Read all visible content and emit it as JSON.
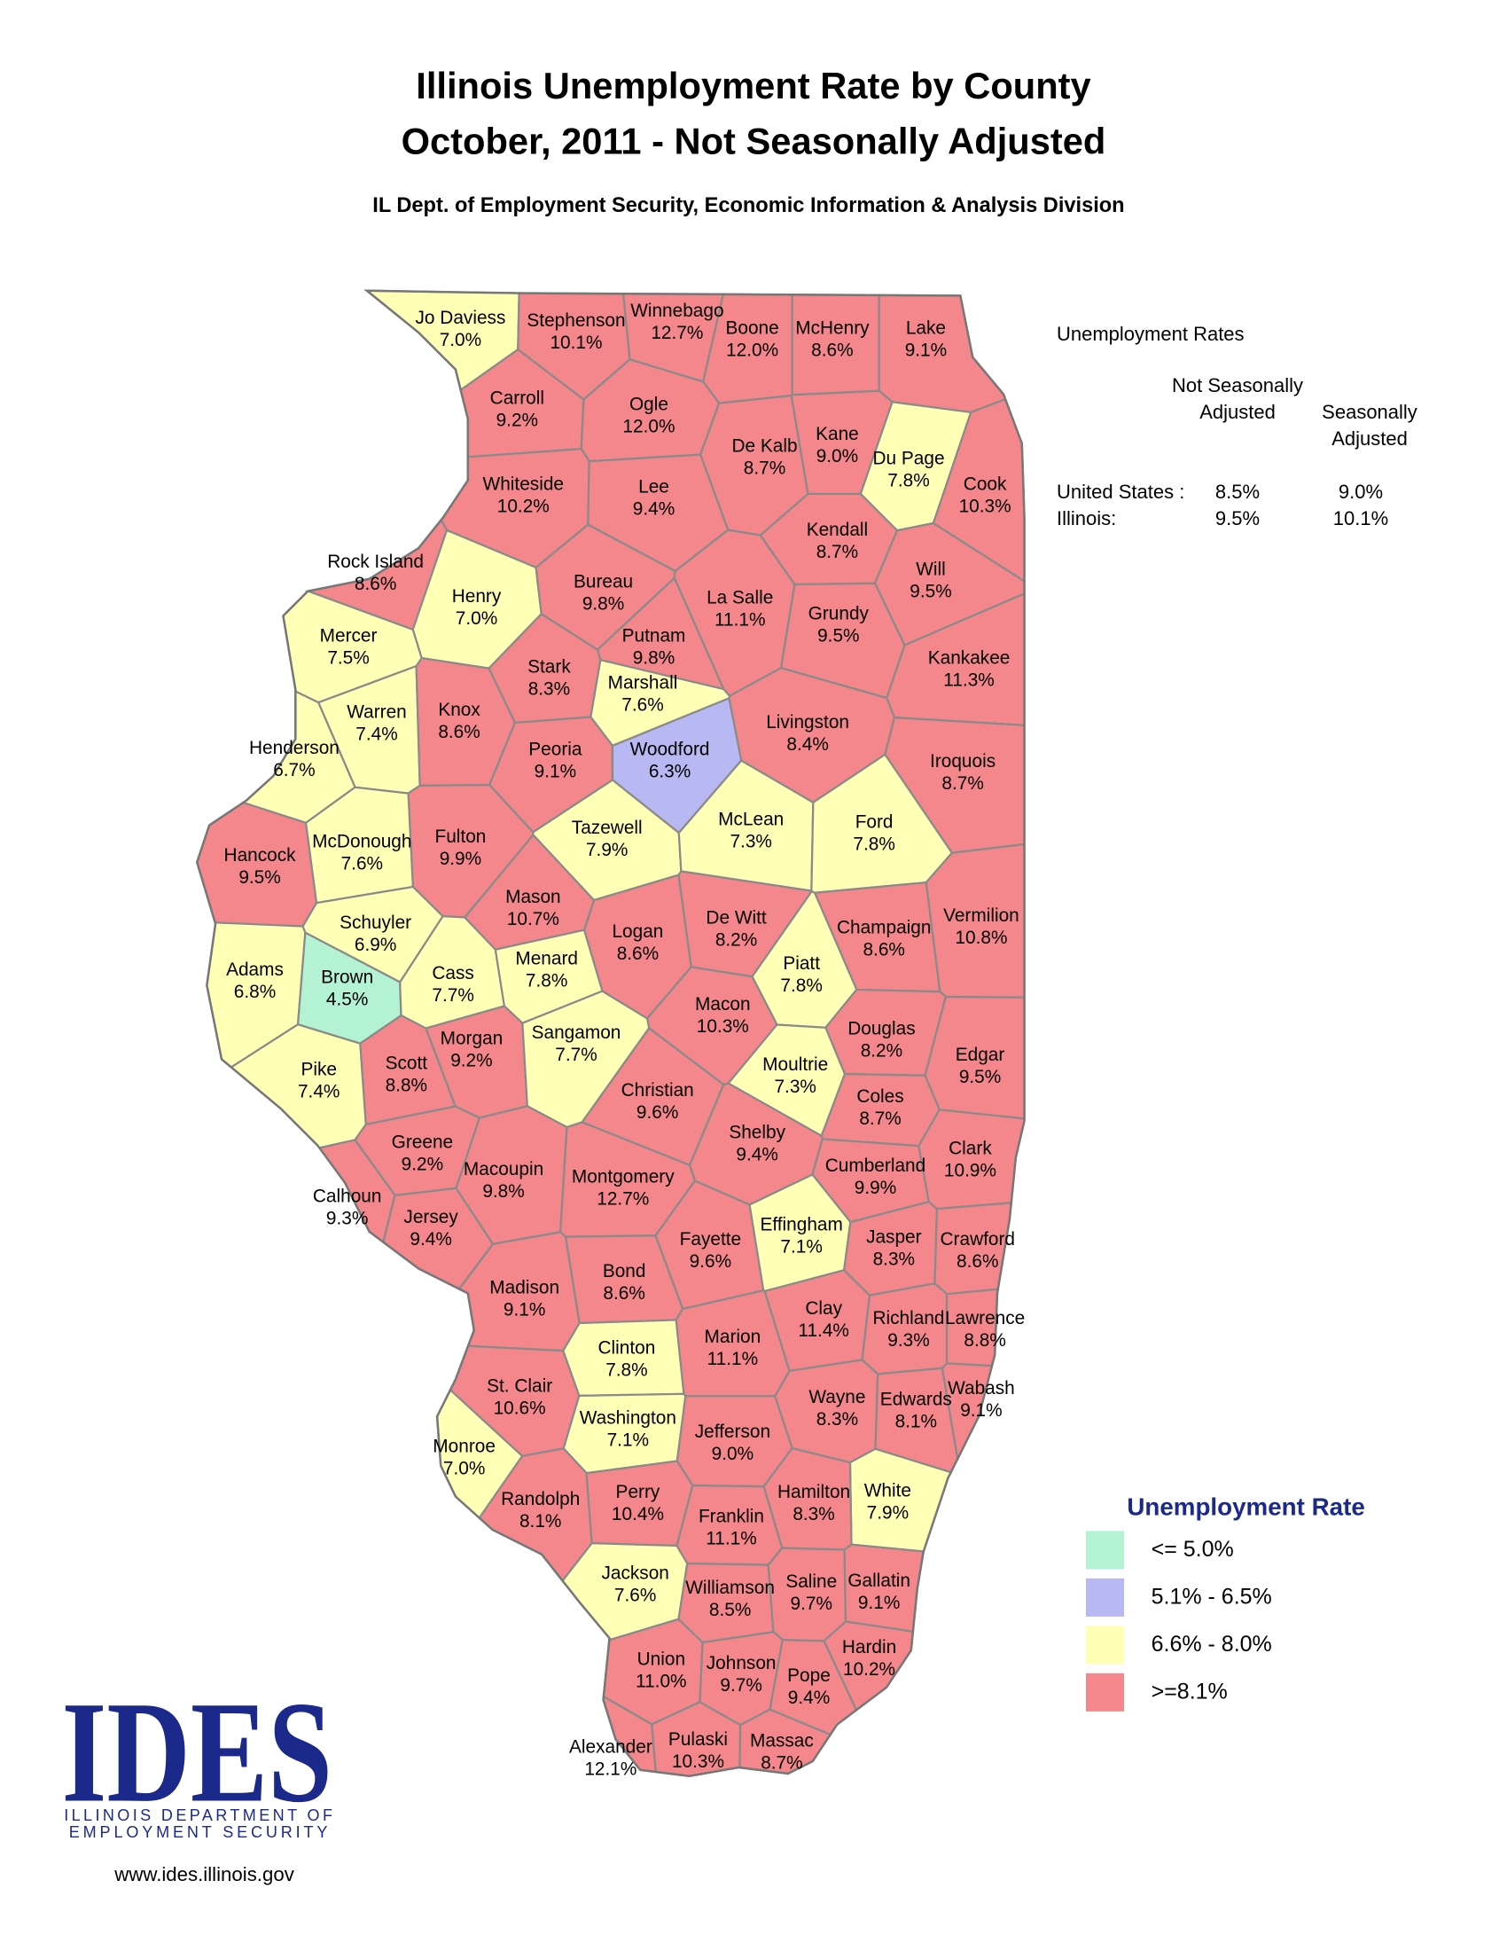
{
  "header": {
    "title": "Illinois Unemployment Rate by County",
    "subtitle": "October, 2011 - Not Seasonally Adjusted",
    "source": "IL Dept. of Employment Security, Economic Information & Analysis Division"
  },
  "rates_table": {
    "title": "Unemployment Rates",
    "columns": [
      "Not Seasonally Adjusted",
      "Seasonally Adjusted"
    ],
    "rows": [
      {
        "label": "United States :",
        "values": [
          "8.5%",
          "9.0%"
        ]
      },
      {
        "label": "Illinois:",
        "values": [
          "9.5%",
          "10.1%"
        ]
      }
    ]
  },
  "legend": {
    "title": "Unemployment Rate",
    "items": [
      {
        "label": "<= 5.0%",
        "color": "#b4f2d4"
      },
      {
        "label": "5.1% - 6.5%",
        "color": "#b8b8f2"
      },
      {
        "label": "6.6% - 8.0%",
        "color": "#ffffb6"
      },
      {
        "label": ">=8.1%",
        "color": "#f4878b"
      }
    ]
  },
  "counties": [
    {
      "name": "Jo Daviess",
      "rate": "7.0%",
      "color": "#ffffb6"
    },
    {
      "name": "Stephenson",
      "rate": "10.1%",
      "color": "#f4878b"
    },
    {
      "name": "Winnebago",
      "rate": "12.7%",
      "color": "#f4878b"
    },
    {
      "name": "Boone",
      "rate": "12.0%",
      "color": "#f4878b"
    },
    {
      "name": "McHenry",
      "rate": "8.6%",
      "color": "#f4878b"
    },
    {
      "name": "Lake",
      "rate": "9.1%",
      "color": "#f4878b"
    },
    {
      "name": "Carroll",
      "rate": "9.2%",
      "color": "#f4878b"
    },
    {
      "name": "Ogle",
      "rate": "12.0%",
      "color": "#f4878b"
    },
    {
      "name": "De Kalb",
      "rate": "8.7%",
      "color": "#f4878b"
    },
    {
      "name": "Kane",
      "rate": "9.0%",
      "color": "#f4878b"
    },
    {
      "name": "Du Page",
      "rate": "7.8%",
      "color": "#ffffb6"
    },
    {
      "name": "Cook",
      "rate": "10.3%",
      "color": "#f4878b"
    },
    {
      "name": "Whiteside",
      "rate": "10.2%",
      "color": "#f4878b"
    },
    {
      "name": "Lee",
      "rate": "9.4%",
      "color": "#f4878b"
    },
    {
      "name": "Kendall",
      "rate": "8.7%",
      "color": "#f4878b"
    },
    {
      "name": "Rock Island",
      "rate": "8.6%",
      "color": "#f4878b"
    },
    {
      "name": "Henry",
      "rate": "7.0%",
      "color": "#ffffb6"
    },
    {
      "name": "Bureau",
      "rate": "9.8%",
      "color": "#f4878b"
    },
    {
      "name": "La Salle",
      "rate": "11.1%",
      "color": "#f4878b"
    },
    {
      "name": "Will",
      "rate": "9.5%",
      "color": "#f4878b"
    },
    {
      "name": "Grundy",
      "rate": "9.5%",
      "color": "#f4878b"
    },
    {
      "name": "Kankakee",
      "rate": "11.3%",
      "color": "#f4878b"
    },
    {
      "name": "Mercer",
      "rate": "7.5%",
      "color": "#ffffb6"
    },
    {
      "name": "Putnam",
      "rate": "9.8%",
      "color": "#f4878b"
    },
    {
      "name": "Stark",
      "rate": "8.3%",
      "color": "#f4878b"
    },
    {
      "name": "Marshall",
      "rate": "7.6%",
      "color": "#ffffb6"
    },
    {
      "name": "Warren",
      "rate": "7.4%",
      "color": "#ffffb6"
    },
    {
      "name": "Knox",
      "rate": "8.6%",
      "color": "#f4878b"
    },
    {
      "name": "Henderson",
      "rate": "6.7%",
      "color": "#ffffb6"
    },
    {
      "name": "Livingston",
      "rate": "8.4%",
      "color": "#f4878b"
    },
    {
      "name": "Peoria",
      "rate": "9.1%",
      "color": "#f4878b"
    },
    {
      "name": "Woodford",
      "rate": "6.3%",
      "color": "#b8b8f2"
    },
    {
      "name": "Iroquois",
      "rate": "8.7%",
      "color": "#f4878b"
    },
    {
      "name": "Hancock",
      "rate": "9.5%",
      "color": "#f4878b"
    },
    {
      "name": "McDonough",
      "rate": "7.6%",
      "color": "#ffffb6"
    },
    {
      "name": "Fulton",
      "rate": "9.9%",
      "color": "#f4878b"
    },
    {
      "name": "Tazewell",
      "rate": "7.9%",
      "color": "#ffffb6"
    },
    {
      "name": "McLean",
      "rate": "7.3%",
      "color": "#ffffb6"
    },
    {
      "name": "Ford",
      "rate": "7.8%",
      "color": "#ffffb6"
    },
    {
      "name": "Mason",
      "rate": "10.7%",
      "color": "#f4878b"
    },
    {
      "name": "Schuyler",
      "rate": "6.9%",
      "color": "#ffffb6"
    },
    {
      "name": "De Witt",
      "rate": "8.2%",
      "color": "#f4878b"
    },
    {
      "name": "Logan",
      "rate": "8.6%",
      "color": "#f4878b"
    },
    {
      "name": "Champaign",
      "rate": "8.6%",
      "color": "#f4878b"
    },
    {
      "name": "Vermilion",
      "rate": "10.8%",
      "color": "#f4878b"
    },
    {
      "name": "Adams",
      "rate": "6.8%",
      "color": "#ffffb6"
    },
    {
      "name": "Brown",
      "rate": "4.5%",
      "color": "#b4f2d4"
    },
    {
      "name": "Cass",
      "rate": "7.7%",
      "color": "#ffffb6"
    },
    {
      "name": "Menard",
      "rate": "7.8%",
      "color": "#ffffb6"
    },
    {
      "name": "Piatt",
      "rate": "7.8%",
      "color": "#ffffb6"
    },
    {
      "name": "Macon",
      "rate": "10.3%",
      "color": "#f4878b"
    },
    {
      "name": "Morgan",
      "rate": "9.2%",
      "color": "#f4878b"
    },
    {
      "name": "Sangamon",
      "rate": "7.7%",
      "color": "#ffffb6"
    },
    {
      "name": "Scott",
      "rate": "8.8%",
      "color": "#f4878b"
    },
    {
      "name": "Pike",
      "rate": "7.4%",
      "color": "#ffffb6"
    },
    {
      "name": "Douglas",
      "rate": "8.2%",
      "color": "#f4878b"
    },
    {
      "name": "Moultrie",
      "rate": "7.3%",
      "color": "#ffffb6"
    },
    {
      "name": "Edgar",
      "rate": "9.5%",
      "color": "#f4878b"
    },
    {
      "name": "Christian",
      "rate": "9.6%",
      "color": "#f4878b"
    },
    {
      "name": "Coles",
      "rate": "8.7%",
      "color": "#f4878b"
    },
    {
      "name": "Greene",
      "rate": "9.2%",
      "color": "#f4878b"
    },
    {
      "name": "Shelby",
      "rate": "9.4%",
      "color": "#f4878b"
    },
    {
      "name": "Clark",
      "rate": "10.9%",
      "color": "#f4878b"
    },
    {
      "name": "Macoupin",
      "rate": "9.8%",
      "color": "#f4878b"
    },
    {
      "name": "Montgomery",
      "rate": "12.7%",
      "color": "#f4878b"
    },
    {
      "name": "Cumberland",
      "rate": "9.9%",
      "color": "#f4878b"
    },
    {
      "name": "Calhoun",
      "rate": "9.3%",
      "color": "#f4878b"
    },
    {
      "name": "Jersey",
      "rate": "9.4%",
      "color": "#f4878b"
    },
    {
      "name": "Fayette",
      "rate": "9.6%",
      "color": "#f4878b"
    },
    {
      "name": "Effingham",
      "rate": "7.1%",
      "color": "#ffffb6"
    },
    {
      "name": "Jasper",
      "rate": "8.3%",
      "color": "#f4878b"
    },
    {
      "name": "Crawford",
      "rate": "8.6%",
      "color": "#f4878b"
    },
    {
      "name": "Bond",
      "rate": "8.6%",
      "color": "#f4878b"
    },
    {
      "name": "Madison",
      "rate": "9.1%",
      "color": "#f4878b"
    },
    {
      "name": "Clay",
      "rate": "11.4%",
      "color": "#f4878b"
    },
    {
      "name": "Richland",
      "rate": "9.3%",
      "color": "#f4878b"
    },
    {
      "name": "Lawrence",
      "rate": "8.8%",
      "color": "#f4878b"
    },
    {
      "name": "Marion",
      "rate": "11.1%",
      "color": "#f4878b"
    },
    {
      "name": "Clinton",
      "rate": "7.8%",
      "color": "#ffffb6"
    },
    {
      "name": "St. Clair",
      "rate": "10.6%",
      "color": "#f4878b"
    },
    {
      "name": "Wayne",
      "rate": "8.3%",
      "color": "#f4878b"
    },
    {
      "name": "Edwards",
      "rate": "8.1%",
      "color": "#f4878b"
    },
    {
      "name": "Wabash",
      "rate": "9.1%",
      "color": "#f4878b"
    },
    {
      "name": "Washington",
      "rate": "7.1%",
      "color": "#ffffb6"
    },
    {
      "name": "Jefferson",
      "rate": "9.0%",
      "color": "#f4878b"
    },
    {
      "name": "Monroe",
      "rate": "7.0%",
      "color": "#ffffb6"
    },
    {
      "name": "White",
      "rate": "7.9%",
      "color": "#ffffb6"
    },
    {
      "name": "Randolph",
      "rate": "8.1%",
      "color": "#f4878b"
    },
    {
      "name": "Perry",
      "rate": "10.4%",
      "color": "#f4878b"
    },
    {
      "name": "Hamilton",
      "rate": "8.3%",
      "color": "#f4878b"
    },
    {
      "name": "Franklin",
      "rate": "11.1%",
      "color": "#f4878b"
    },
    {
      "name": "Jackson",
      "rate": "7.6%",
      "color": "#ffffb6"
    },
    {
      "name": "Williamson",
      "rate": "8.5%",
      "color": "#f4878b"
    },
    {
      "name": "Saline",
      "rate": "9.7%",
      "color": "#f4878b"
    },
    {
      "name": "Gallatin",
      "rate": "9.1%",
      "color": "#f4878b"
    },
    {
      "name": "Union",
      "rate": "11.0%",
      "color": "#f4878b"
    },
    {
      "name": "Johnson",
      "rate": "9.7%",
      "color": "#f4878b"
    },
    {
      "name": "Hardin",
      "rate": "10.2%",
      "color": "#f4878b"
    },
    {
      "name": "Pope",
      "rate": "9.4%",
      "color": "#f4878b"
    },
    {
      "name": "Alexander",
      "rate": "12.1%",
      "color": "#f4878b"
    },
    {
      "name": "Pulaski",
      "rate": "10.3%",
      "color": "#f4878b"
    },
    {
      "name": "Massac",
      "rate": "8.7%",
      "color": "#f4878b"
    }
  ],
  "logo": {
    "mark": "IDES",
    "line1": "ILLINOIS DEPARTMENT OF",
    "line2": "EMPLOYMENT SECURITY",
    "url": "www.ides.illinois.gov"
  }
}
